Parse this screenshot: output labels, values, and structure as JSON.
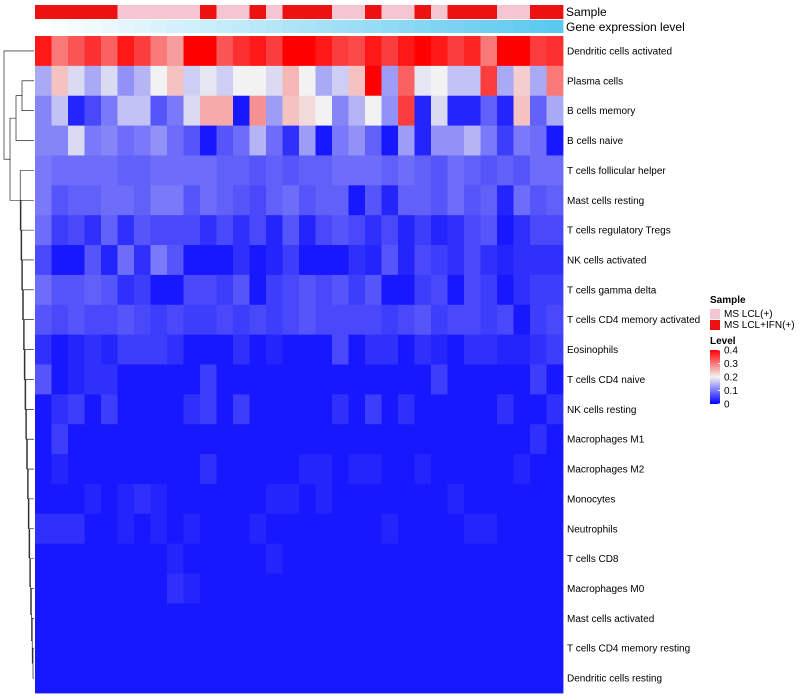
{
  "chart_data": {
    "type": "heatmap",
    "title": "",
    "n_columns": 32,
    "annotation_labels": {
      "sample": "Sample",
      "expression": "Gene expression level"
    },
    "sample_annotation": [
      "IFN",
      "IFN",
      "IFN",
      "IFN",
      "IFN",
      "LCL",
      "LCL",
      "LCL",
      "LCL",
      "LCL",
      "IFN",
      "LCL",
      "LCL",
      "IFN",
      "LCL",
      "IFN",
      "IFN",
      "IFN",
      "LCL",
      "LCL",
      "IFN",
      "LCL",
      "LCL",
      "IFN",
      "LCL",
      "IFN",
      "IFN",
      "IFN",
      "LCL",
      "LCL",
      "IFN",
      "IFN"
    ],
    "rows": [
      "Dendritic cells activated",
      "Plasma cells",
      "B cells memory",
      "B cells naive",
      "T cells follicular helper",
      "Mast cells resting",
      "T cells regulatory  Tregs",
      "NK cells activated",
      "T cells gamma delta",
      "T cells CD4 memory activated",
      "Eosinophils",
      "T cells CD4 naive",
      "NK cells resting",
      "Macrophages M1",
      "Macrophages M2",
      "Monocytes",
      "Neutrophils",
      "T cells CD8",
      "Macrophages M0",
      "Mast cells activated",
      "T cells CD4 memory resting",
      "Dendritic cells resting"
    ],
    "values": [
      [
        0.38,
        0.3,
        0.33,
        0.36,
        0.32,
        0.38,
        0.35,
        0.3,
        0.27,
        0.4,
        0.4,
        0.33,
        0.36,
        0.38,
        0.35,
        0.4,
        0.4,
        0.38,
        0.35,
        0.34,
        0.38,
        0.35,
        0.38,
        0.4,
        0.38,
        0.35,
        0.37,
        0.3,
        0.4,
        0.4,
        0.35,
        0.36
      ],
      [
        0.14,
        0.24,
        0.18,
        0.14,
        0.18,
        0.12,
        0.15,
        0.2,
        0.24,
        0.17,
        0.19,
        0.17,
        0.2,
        0.2,
        0.18,
        0.25,
        0.2,
        0.14,
        0.17,
        0.24,
        0.4,
        0.13,
        0.32,
        0.19,
        0.2,
        0.16,
        0.16,
        0.35,
        0.14,
        0.23,
        0.14,
        0.3
      ],
      [
        0.11,
        0.16,
        0.03,
        0.06,
        0.1,
        0.16,
        0.16,
        0.07,
        0.1,
        0.18,
        0.26,
        0.26,
        0.02,
        0.28,
        0.13,
        0.24,
        0.22,
        0.2,
        0.11,
        0.15,
        0.2,
        0.12,
        0.35,
        0.03,
        0.18,
        0.03,
        0.03,
        0.08,
        0.03,
        0.24,
        0.08,
        0.14
      ],
      [
        0.11,
        0.11,
        0.18,
        0.1,
        0.11,
        0.09,
        0.1,
        0.12,
        0.09,
        0.07,
        0.02,
        0.07,
        0.09,
        0.15,
        0.09,
        0.04,
        0.13,
        0.02,
        0.1,
        0.12,
        0.08,
        0.02,
        0.13,
        0.03,
        0.12,
        0.12,
        0.15,
        0.1,
        0.05,
        0.1,
        0.09,
        0.02
      ],
      [
        0.1,
        0.09,
        0.09,
        0.09,
        0.09,
        0.08,
        0.08,
        0.09,
        0.09,
        0.09,
        0.09,
        0.08,
        0.08,
        0.07,
        0.08,
        0.07,
        0.08,
        0.08,
        0.09,
        0.09,
        0.09,
        0.08,
        0.09,
        0.08,
        0.07,
        0.09,
        0.08,
        0.07,
        0.08,
        0.07,
        0.09,
        0.09
      ],
      [
        0.1,
        0.07,
        0.08,
        0.08,
        0.09,
        0.09,
        0.08,
        0.1,
        0.1,
        0.07,
        0.09,
        0.08,
        0.07,
        0.06,
        0.08,
        0.09,
        0.07,
        0.08,
        0.08,
        0.02,
        0.07,
        0.03,
        0.08,
        0.08,
        0.07,
        0.09,
        0.07,
        0.08,
        0.03,
        0.09,
        0.07,
        0.08
      ],
      [
        0.09,
        0.05,
        0.06,
        0.04,
        0.08,
        0.04,
        0.07,
        0.06,
        0.06,
        0.06,
        0.04,
        0.06,
        0.04,
        0.06,
        0.03,
        0.07,
        0.03,
        0.06,
        0.07,
        0.06,
        0.04,
        0.06,
        0.03,
        0.05,
        0.03,
        0.04,
        0.06,
        0.07,
        0.02,
        0.04,
        0.06,
        0.06
      ],
      [
        0.06,
        0.02,
        0.02,
        0.07,
        0.03,
        0.09,
        0.04,
        0.1,
        0.07,
        0.02,
        0.02,
        0.02,
        0.04,
        0.02,
        0.03,
        0.05,
        0.02,
        0.02,
        0.02,
        0.04,
        0.03,
        0.07,
        0.03,
        0.06,
        0.05,
        0.04,
        0.06,
        0.04,
        0.03,
        0.04,
        0.04,
        0.04
      ],
      [
        0.09,
        0.07,
        0.07,
        0.08,
        0.07,
        0.04,
        0.05,
        0.02,
        0.02,
        0.06,
        0.06,
        0.05,
        0.07,
        0.02,
        0.05,
        0.06,
        0.07,
        0.06,
        0.07,
        0.05,
        0.07,
        0.02,
        0.02,
        0.05,
        0.06,
        0.02,
        0.06,
        0.05,
        0.02,
        0.04,
        0.05,
        0.05
      ],
      [
        0.07,
        0.06,
        0.07,
        0.06,
        0.06,
        0.07,
        0.06,
        0.05,
        0.06,
        0.05,
        0.05,
        0.06,
        0.05,
        0.06,
        0.05,
        0.06,
        0.07,
        0.06,
        0.06,
        0.06,
        0.06,
        0.05,
        0.06,
        0.07,
        0.05,
        0.06,
        0.06,
        0.05,
        0.06,
        0.02,
        0.05,
        0.06
      ],
      [
        0.04,
        0.02,
        0.03,
        0.04,
        0.03,
        0.05,
        0.05,
        0.05,
        0.04,
        0.02,
        0.02,
        0.02,
        0.04,
        0.02,
        0.03,
        0.02,
        0.02,
        0.02,
        0.06,
        0.02,
        0.04,
        0.04,
        0.02,
        0.04,
        0.03,
        0.02,
        0.04,
        0.04,
        0.03,
        0.03,
        0.04,
        0.05
      ],
      [
        0.07,
        0.02,
        0.03,
        0.04,
        0.04,
        0.02,
        0.02,
        0.02,
        0.02,
        0.02,
        0.05,
        0.02,
        0.02,
        0.02,
        0.02,
        0.02,
        0.02,
        0.02,
        0.02,
        0.02,
        0.02,
        0.02,
        0.02,
        0.02,
        0.05,
        0.02,
        0.02,
        0.02,
        0.02,
        0.02,
        0.05,
        0.02
      ],
      [
        0.02,
        0.04,
        0.05,
        0.02,
        0.05,
        0.02,
        0.02,
        0.02,
        0.02,
        0.04,
        0.05,
        0.02,
        0.05,
        0.02,
        0.02,
        0.02,
        0.02,
        0.02,
        0.04,
        0.02,
        0.05,
        0.02,
        0.04,
        0.02,
        0.02,
        0.02,
        0.02,
        0.02,
        0.04,
        0.02,
        0.02,
        0.04
      ],
      [
        0.02,
        0.05,
        0.02,
        0.02,
        0.02,
        0.02,
        0.02,
        0.02,
        0.02,
        0.02,
        0.02,
        0.02,
        0.02,
        0.02,
        0.02,
        0.02,
        0.02,
        0.02,
        0.02,
        0.02,
        0.02,
        0.02,
        0.02,
        0.02,
        0.02,
        0.02,
        0.02,
        0.02,
        0.02,
        0.02,
        0.04,
        0.02
      ],
      [
        0.02,
        0.03,
        0.02,
        0.02,
        0.02,
        0.02,
        0.02,
        0.02,
        0.02,
        0.02,
        0.04,
        0.02,
        0.02,
        0.02,
        0.02,
        0.02,
        0.03,
        0.03,
        0.02,
        0.03,
        0.03,
        0.02,
        0.02,
        0.03,
        0.02,
        0.02,
        0.02,
        0.02,
        0.02,
        0.03,
        0.02,
        0.02
      ],
      [
        0.02,
        0.02,
        0.02,
        0.03,
        0.02,
        0.03,
        0.04,
        0.03,
        0.02,
        0.02,
        0.02,
        0.02,
        0.02,
        0.02,
        0.03,
        0.03,
        0.02,
        0.03,
        0.02,
        0.02,
        0.02,
        0.02,
        0.02,
        0.02,
        0.02,
        0.03,
        0.02,
        0.02,
        0.02,
        0.02,
        0.02,
        0.02
      ],
      [
        0.04,
        0.04,
        0.04,
        0.02,
        0.02,
        0.03,
        0.02,
        0.03,
        0.02,
        0.03,
        0.02,
        0.02,
        0.02,
        0.03,
        0.02,
        0.02,
        0.02,
        0.02,
        0.02,
        0.02,
        0.02,
        0.03,
        0.02,
        0.02,
        0.02,
        0.02,
        0.03,
        0.03,
        0.02,
        0.02,
        0.02,
        0.02
      ],
      [
        0.02,
        0.02,
        0.02,
        0.02,
        0.02,
        0.02,
        0.02,
        0.02,
        0.03,
        0.02,
        0.02,
        0.02,
        0.02,
        0.02,
        0.03,
        0.02,
        0.02,
        0.02,
        0.02,
        0.02,
        0.02,
        0.02,
        0.02,
        0.02,
        0.02,
        0.02,
        0.02,
        0.02,
        0.02,
        0.02,
        0.02,
        0.02
      ],
      [
        0.02,
        0.02,
        0.02,
        0.02,
        0.02,
        0.02,
        0.02,
        0.02,
        0.04,
        0.03,
        0.02,
        0.02,
        0.02,
        0.02,
        0.02,
        0.02,
        0.02,
        0.02,
        0.02,
        0.02,
        0.02,
        0.02,
        0.02,
        0.02,
        0.02,
        0.02,
        0.02,
        0.02,
        0.02,
        0.02,
        0.02,
        0.02
      ],
      [
        0.02,
        0.02,
        0.02,
        0.02,
        0.02,
        0.02,
        0.02,
        0.02,
        0.02,
        0.02,
        0.02,
        0.02,
        0.02,
        0.02,
        0.02,
        0.02,
        0.02,
        0.02,
        0.02,
        0.02,
        0.02,
        0.02,
        0.02,
        0.02,
        0.02,
        0.02,
        0.02,
        0.02,
        0.02,
        0.02,
        0.02,
        0.02
      ],
      [
        0.02,
        0.02,
        0.02,
        0.02,
        0.02,
        0.02,
        0.02,
        0.02,
        0.02,
        0.02,
        0.02,
        0.02,
        0.02,
        0.02,
        0.02,
        0.02,
        0.02,
        0.02,
        0.02,
        0.02,
        0.02,
        0.02,
        0.02,
        0.02,
        0.02,
        0.02,
        0.02,
        0.02,
        0.02,
        0.02,
        0.02,
        0.02
      ],
      [
        0.02,
        0.02,
        0.02,
        0.02,
        0.02,
        0.02,
        0.02,
        0.02,
        0.02,
        0.02,
        0.02,
        0.02,
        0.02,
        0.02,
        0.02,
        0.02,
        0.02,
        0.02,
        0.02,
        0.02,
        0.02,
        0.02,
        0.02,
        0.02,
        0.02,
        0.02,
        0.02,
        0.02,
        0.02,
        0.02,
        0.02,
        0.02
      ]
    ],
    "legend_sample": {
      "title": "Sample",
      "entries": [
        {
          "key": "LCL",
          "label": "MS LCL(+)",
          "color": "#f5c6d2"
        },
        {
          "key": "IFN",
          "label": "MS LCL+IFN(+)",
          "color": "#ee1111"
        }
      ]
    },
    "legend_level": {
      "title": "Level",
      "ticks": [
        "0.4",
        "0.3",
        "0.2",
        "0.1",
        "0"
      ],
      "tick_values": [
        0.4,
        0.3,
        0.2,
        0.1,
        0
      ],
      "range": [
        0,
        0.4
      ]
    },
    "color_scale": {
      "low": "#0000ff",
      "mid": "#f2f2f2",
      "high": "#ff0000",
      "midpoint": 0.2
    },
    "expression_gradient": [
      "#ffffff",
      "#5ac8ef"
    ]
  }
}
